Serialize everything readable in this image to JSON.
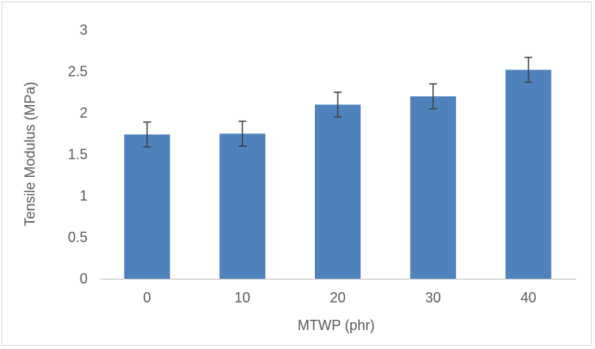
{
  "chart_data": {
    "type": "bar",
    "title": "",
    "xlabel": "MTWP (phr)",
    "ylabel": "Tensile Modulus (MPa)",
    "categories": [
      "0",
      "10",
      "20",
      "30",
      "40"
    ],
    "values": [
      1.74,
      1.75,
      2.1,
      2.2,
      2.52
    ],
    "error": [
      0.15,
      0.15,
      0.15,
      0.15,
      0.15
    ],
    "ylim": [
      0,
      3
    ],
    "yticks": [
      "0",
      "0.5",
      "1",
      "1.5",
      "2",
      "2.5",
      "3"
    ],
    "grid": false,
    "legend": "none",
    "colors": {
      "bar": "#4f81bd",
      "error_bar": "#404040",
      "axis": "#bfbfbf",
      "text": "#595959"
    }
  }
}
